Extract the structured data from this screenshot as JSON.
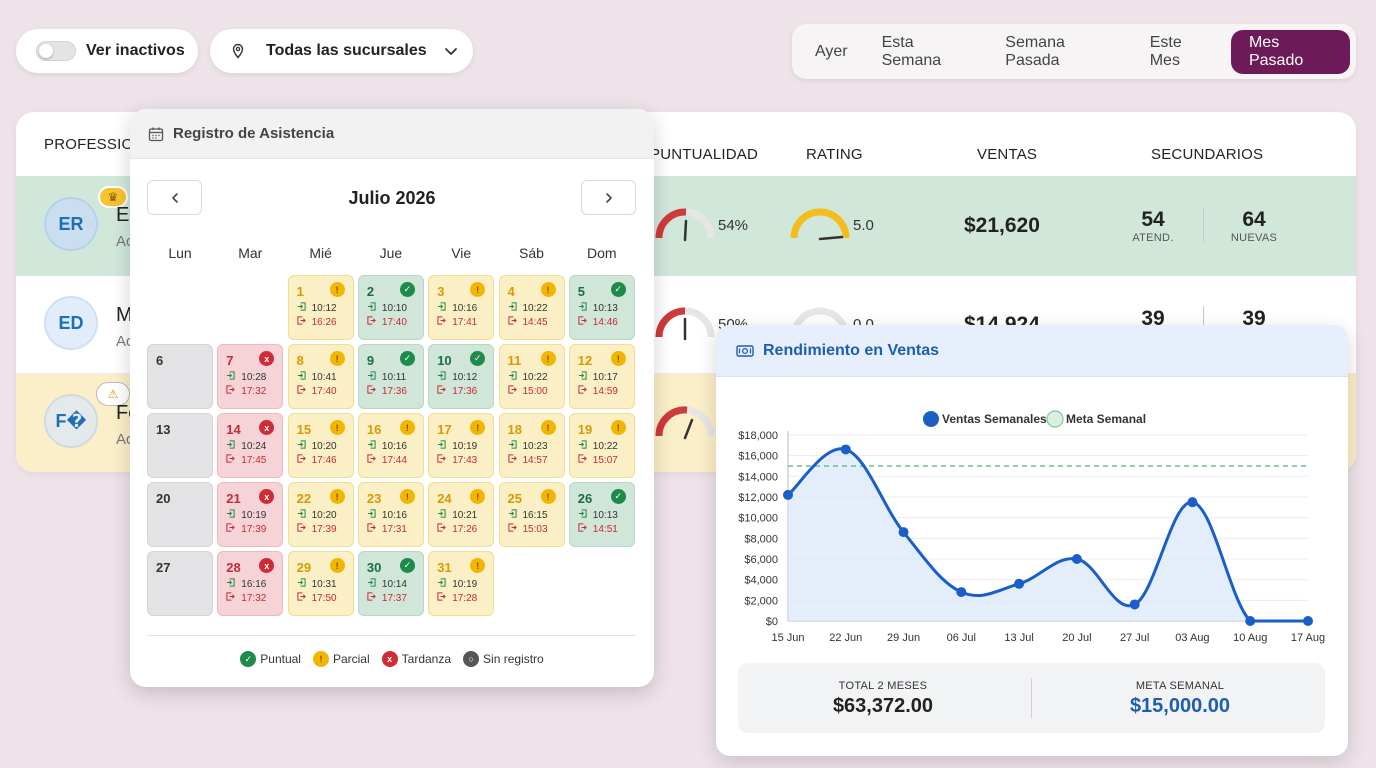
{
  "filters": {
    "inactive_toggle_label": "Ver inactivos",
    "branch_label": "Todas las sucursales"
  },
  "periods": [
    "Ayer",
    "Esta Semana",
    "Semana Pasada",
    "Este Mes",
    "Mes Pasado"
  ],
  "active_period": "Mes Pasado",
  "table": {
    "headers": {
      "professional": "PROFESSIONA",
      "punctuality": "PUNTUALIDAD",
      "rating": "RATING",
      "sales": "VENTAS",
      "secondary": "SECUNDARIOS"
    },
    "rows": [
      {
        "initials": "ER",
        "name": "El",
        "sub": "Ac",
        "punctuality": "54%",
        "punctuality_value": 54,
        "rating": "5.0",
        "rating_value": 5.0,
        "sales": "$21,620",
        "attended": "54",
        "attended_label": "ATEND.",
        "new": "64",
        "new_label": "NUEVAS"
      },
      {
        "initials": "ED",
        "name": "M",
        "sub": "Ac",
        "punctuality": "50%",
        "punctuality_value": 50,
        "rating": "0.0",
        "rating_value": 0.0,
        "sales": "$14,924",
        "attended": "39",
        "new": "39"
      },
      {
        "initials": "F�",
        "name": "Fe",
        "sub": "Ac",
        "punctuality_value": 45
      }
    ]
  },
  "calendar": {
    "header_title": "Registro de Asistencia",
    "month_title": "Julio 2026",
    "weekdays": [
      "Lun",
      "Mar",
      "Mié",
      "Jue",
      "Vie",
      "Sáb",
      "Dom"
    ],
    "days": [
      {
        "d": "1",
        "status": "parcial",
        "in": "10:12",
        "out": "16:26"
      },
      {
        "d": "2",
        "status": "puntual",
        "in": "10:10",
        "out": "17:40"
      },
      {
        "d": "3",
        "status": "parcial",
        "in": "10:16",
        "out": "17:41"
      },
      {
        "d": "4",
        "status": "parcial",
        "in": "10:22",
        "out": "14:45"
      },
      {
        "d": "5",
        "status": "puntual",
        "in": "10:13",
        "out": "14:46"
      },
      {
        "d": "6",
        "status": "none"
      },
      {
        "d": "7",
        "status": "tardanza",
        "in": "10:28",
        "out": "17:32"
      },
      {
        "d": "8",
        "status": "parcial",
        "in": "10:41",
        "out": "17:40"
      },
      {
        "d": "9",
        "status": "puntual",
        "in": "10:11",
        "out": "17:36"
      },
      {
        "d": "10",
        "status": "puntual",
        "in": "10:12",
        "out": "17:36"
      },
      {
        "d": "11",
        "status": "parcial",
        "in": "10:22",
        "out": "15:00"
      },
      {
        "d": "12",
        "status": "parcial",
        "in": "10:17",
        "out": "14:59"
      },
      {
        "d": "13",
        "status": "none"
      },
      {
        "d": "14",
        "status": "tardanza",
        "in": "10:24",
        "out": "17:45"
      },
      {
        "d": "15",
        "status": "parcial",
        "in": "10:20",
        "out": "17:46"
      },
      {
        "d": "16",
        "status": "parcial",
        "in": "10:16",
        "out": "17:44"
      },
      {
        "d": "17",
        "status": "parcial",
        "in": "10:19",
        "out": "17:43"
      },
      {
        "d": "18",
        "status": "parcial",
        "in": "10:23",
        "out": "14:57"
      },
      {
        "d": "19",
        "status": "parcial",
        "in": "10:22",
        "out": "15:07"
      },
      {
        "d": "20",
        "status": "none"
      },
      {
        "d": "21",
        "status": "tardanza",
        "in": "10:19",
        "out": "17:39"
      },
      {
        "d": "22",
        "status": "parcial",
        "in": "10:20",
        "out": "17:39"
      },
      {
        "d": "23",
        "status": "parcial",
        "in": "10:16",
        "out": "17:31"
      },
      {
        "d": "24",
        "status": "parcial",
        "in": "10:21",
        "out": "17:26"
      },
      {
        "d": "25",
        "status": "parcial",
        "in": "16:15",
        "out": "15:03"
      },
      {
        "d": "26",
        "status": "puntual",
        "in": "10:13",
        "out": "14:51"
      },
      {
        "d": "27",
        "status": "none"
      },
      {
        "d": "28",
        "status": "tardanza",
        "in": "16:16",
        "out": "17:32"
      },
      {
        "d": "29",
        "status": "parcial",
        "in": "10:31",
        "out": "17:50"
      },
      {
        "d": "30",
        "status": "puntual",
        "in": "10:14",
        "out": "17:37"
      },
      {
        "d": "31",
        "status": "parcial",
        "in": "10:19",
        "out": "17:28"
      }
    ],
    "legend": [
      "Puntual",
      "Parcial",
      "Tardanza",
      "Sin registro"
    ],
    "colors": {
      "puntual": "#1e8a4c",
      "parcial": "#f2b600",
      "tardanza": "#cf2c38",
      "none": "#555555"
    }
  },
  "sales_panel": {
    "title": "Rendimiento en Ventas",
    "total_label": "TOTAL 2 MESES",
    "total_value": "$63,372.00",
    "goal_label": "META SEMANAL",
    "goal_value": "$15,000.00"
  },
  "chart_data": {
    "type": "line",
    "x": [
      "15 Jun",
      "22 Jun",
      "29 Jun",
      "06 Jul",
      "13 Jul",
      "20 Jul",
      "27 Jul",
      "03 Aug",
      "10 Aug",
      "17 Aug"
    ],
    "series": [
      {
        "name": "Ventas Semanales",
        "values": [
          12200,
          16600,
          8600,
          2800,
          3600,
          6000,
          1600,
          11500,
          0,
          0
        ],
        "color": "#1a5fc8"
      },
      {
        "name": "Meta Semanal",
        "values": [
          15000,
          15000,
          15000,
          15000,
          15000,
          15000,
          15000,
          15000,
          15000,
          15000
        ],
        "color": "#7dc99a",
        "dashed": true
      }
    ],
    "yticks": [
      "$0",
      "$2,000",
      "$4,000",
      "$6,000",
      "$8,000",
      "$10,000",
      "$12,000",
      "$14,000",
      "$16,000",
      "$18,000"
    ],
    "ylim": [
      0,
      18000
    ],
    "legend_position": "top",
    "grid": true
  }
}
